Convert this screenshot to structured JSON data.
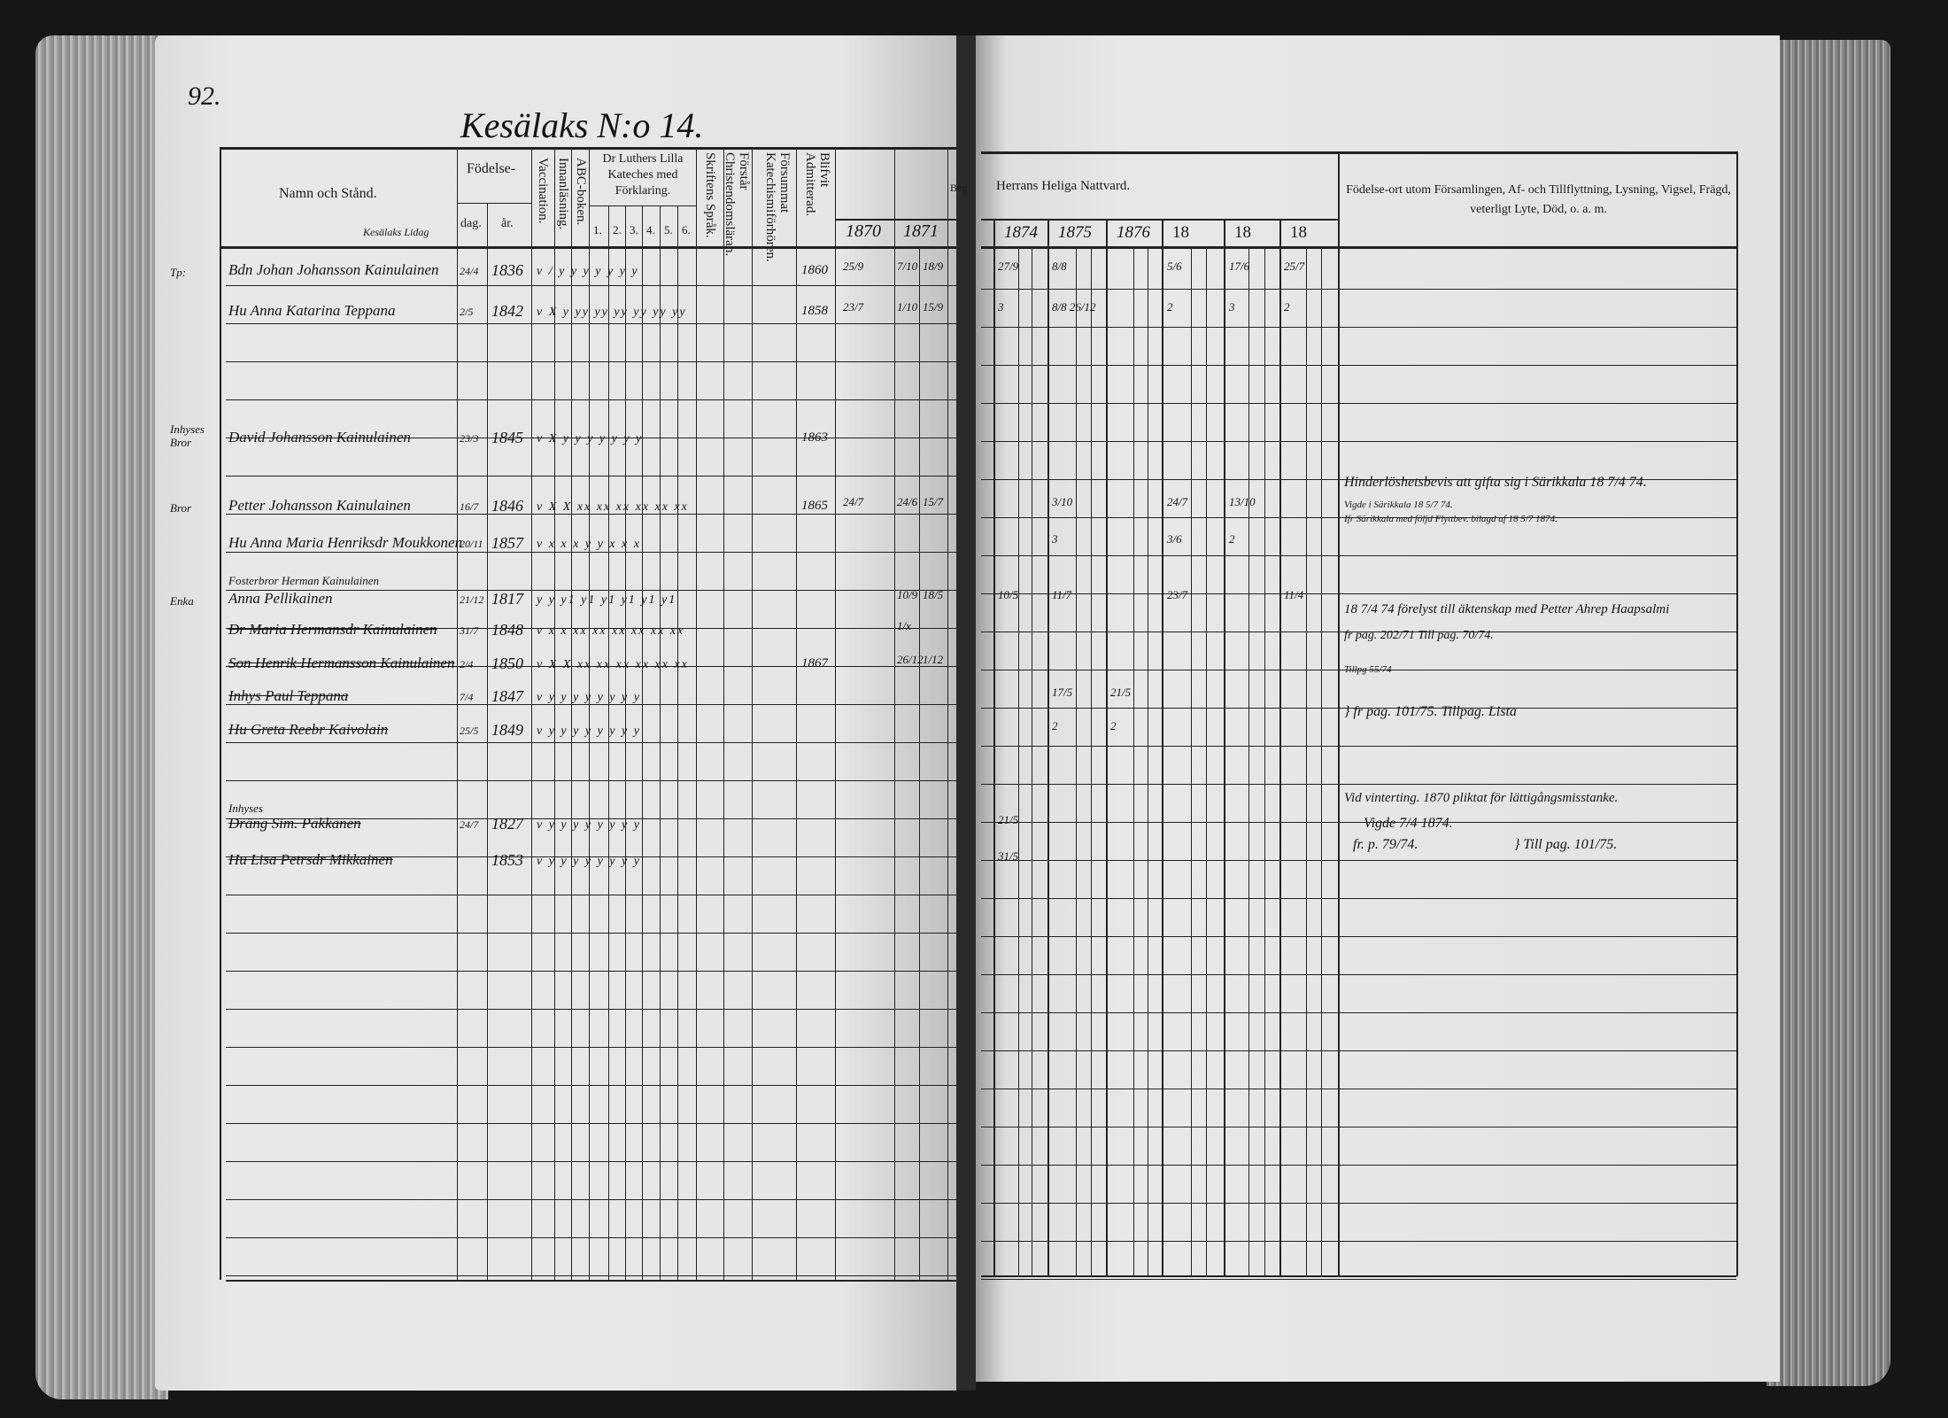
{
  "page_number": "92.",
  "title": "Kesälaks N:o 14.",
  "left_header": {
    "name_col": "Namn och Stånd.",
    "name_sub": "Kesälaks Lidag",
    "birth": "Födelse-",
    "birth_day": "dag.",
    "birth_year": "år.",
    "vaccination": "Vaccination.",
    "reading": "Innanläsning.",
    "abc": "ABC-boken.",
    "luther": "Dr Luthers Lilla Kateches med Förklaring.",
    "luther_parts": [
      "1.",
      "2.",
      "3.",
      "4.",
      "5.",
      "6."
    ],
    "scripture": "Skriftens Språk.",
    "christian": "Förstår Christendomsläran.",
    "missed": "Försummat Katechismiförhören.",
    "admitted": "Blifvit Admitterad.",
    "year_1870": "1870",
    "year_1871": "1871",
    "cut_label": "Beg"
  },
  "right_header": {
    "communion": "Herrans Heliga Nattvard.",
    "years": [
      "1874",
      "1875",
      "1876",
      "18",
      "18",
      "18"
    ],
    "notes": "Födelse-ort utom Församlingen, Af- och Tillflyttning, Lysning, Vigsel, Frägd, veterligt Lyte, Död, o. a. m."
  },
  "rows": [
    {
      "left_note": "Tp:",
      "name": "Bdn Johan Johansson Kainulainen",
      "dag": "24/4",
      "ar": "1836",
      "marks": "v / y y y y y y y",
      "admitted": "1860",
      "struck": false,
      "communion": {
        "1870": "25/9",
        "1871": "7/10",
        "1872": "18/9",
        "1874": "27/9",
        "1875": "8/8",
        "18a": "5/6",
        "18b": "17/6",
        "18c": "25/7"
      }
    },
    {
      "left_note": "",
      "name": "Hu Anna Katarina Teppana",
      "dag": "2/5",
      "ar": "1842",
      "marks": "v X y yy yy yy yy yy yy",
      "admitted": "1858",
      "struck": false,
      "communion": {
        "1870": "23/7",
        "1871": "1/10",
        "1872": "15/9",
        "1874": "3",
        "1875": "8/8 26/12",
        "18a": "2",
        "18b": "3",
        "18c": "2"
      }
    },
    {
      "left_note": "Inhyses Bror",
      "name": "David Johansson Kainulainen",
      "dag": "23/3",
      "ar": "1845",
      "marks": "v X y y y y y y y",
      "admitted": "1863",
      "struck": false,
      "communion": {}
    },
    {
      "left_note": "Bror",
      "name": "Petter Johansson Kainulainen",
      "dag": "16/7",
      "ar": "1846",
      "marks": "v X X xx xx xx xx xx xx",
      "admitted": "1865",
      "struck": false,
      "communion": {
        "1870": "24/7",
        "1871": "24/6",
        "1872": "15/7",
        "1875": "3/10",
        "18a": "24/7",
        "18b": "13/10"
      }
    },
    {
      "left_note": "",
      "name": "Hu Anna Maria Henriksdr Moukkonen",
      "dag": "20/11",
      "ar": "1857",
      "marks": "v x x x y y x x x",
      "admitted": "",
      "struck": false,
      "communion": {
        "1875": "3",
        "18a": "3/6",
        "18b": "2"
      }
    },
    {
      "left_note": "",
      "name": "Fosterbror Herman Kainulainen",
      "dag": "",
      "ar": "",
      "marks": "",
      "admitted": "",
      "struck": false,
      "small": true,
      "communion": {}
    },
    {
      "left_note": "Enka",
      "name": "Anna Pellikainen",
      "dag": "21/12",
      "ar": "1817",
      "marks": "y y y1 y1 y1 y1 y1 y1",
      "admitted": "",
      "struck": false,
      "communion": {
        "1871": "10/9",
        "1872": "18/5",
        "1874": "10/5",
        "1875": "11/7",
        "18a": "23/7",
        "18c": "11/4"
      }
    },
    {
      "left_note": "",
      "name": "Dr Maria Hermansdr Kainulainen",
      "dag": "31/7",
      "ar": "1848",
      "marks": "v x x xx xx xx xx xx xx",
      "admitted": "",
      "struck": true,
      "communion": {
        "1871": "1/x"
      }
    },
    {
      "left_note": "",
      "name": "Son Henrik Hermansson Kainulainen",
      "dag": "2/4",
      "ar": "1850",
      "marks": "v X X xx xx xx xx xx xx",
      "admitted": "1867",
      "struck": true,
      "communion": {
        "1871": "26/12",
        "1872": "1/12"
      }
    },
    {
      "left_note": "",
      "name": "Inhys Paul Teppana",
      "dag": "7/4",
      "ar": "1847",
      "marks": "v y y y y y y y y",
      "admitted": "",
      "struck": true,
      "communion": {
        "1875": "17/5",
        "1876": "21/5"
      }
    },
    {
      "left_note": "",
      "name": "Hu Greta Reebr Kaivolain",
      "dag": "25/5",
      "ar": "1849",
      "marks": "v y y y y y y y y",
      "admitted": "",
      "struck": true,
      "communion": {
        "1875": "2",
        "1876": "2"
      }
    },
    {
      "left_note": "",
      "name": "Inhyses",
      "dag": "",
      "ar": "",
      "marks": "",
      "admitted": "",
      "struck": false,
      "small": true,
      "communion": {}
    },
    {
      "left_note": "",
      "name": "Dräng Sim. Pakkanen",
      "dag": "24/7",
      "ar": "1827",
      "marks": "v y y y y y y y y",
      "admitted": "",
      "struck": true,
      "communion": {
        "1874": "21/5"
      }
    },
    {
      "left_note": "",
      "name": "Hu Lisa Petrsdr Mikkainen",
      "dag": "",
      "ar": "1853",
      "marks": "v y y y y y y y y",
      "admitted": "",
      "struck": true,
      "communion": {
        "1874": "31/5"
      }
    }
  ],
  "notes": [
    "Hinderlöshetsbevis att gifta sig i Särikkala 18 7/4 74.",
    "Vigde i Särikkala 18 5/7 74.",
    "Ifr Särikkala med följd Flyttbev. bilagd af 18 5/7 1874.",
    "18 7/4 74 förelyst till äktenskap med Petter Ahrep Haapsalmi",
    "fr pag. 202/71   Till pag. 70/74.",
    "Tillpg 55/74",
    "} fr pag. 101/75.  Tillpag. Lista",
    "Vid vinterting. 1870 pliktat för lättigångsmisstanke.",
    "Vigde 7/4 1874.",
    "fr. p. 79/74.",
    "} Till pag. 101/75."
  ]
}
